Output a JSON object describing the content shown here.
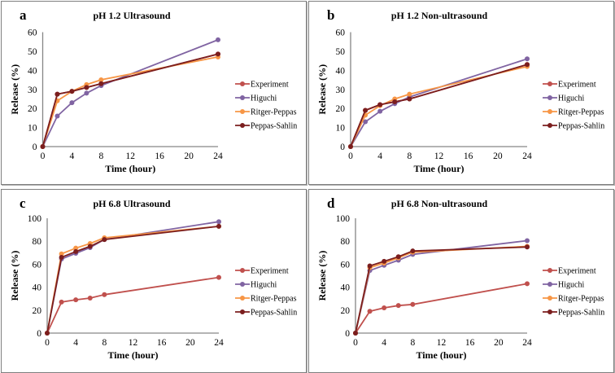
{
  "figure": {
    "panels": [
      "a",
      "b",
      "c",
      "d"
    ]
  },
  "chart_data": [
    {
      "id": "a",
      "type": "line",
      "letter": "a",
      "title": "pH 1.2 Ultrasound",
      "xlabel": "Time (hour)",
      "ylabel": "Release (%)",
      "x": [
        0,
        2,
        4,
        6,
        8,
        24
      ],
      "xlim": [
        0,
        24
      ],
      "xticks": [
        0,
        4,
        8,
        12,
        16,
        20,
        24
      ],
      "ylim": [
        0,
        60
      ],
      "yticks": [
        0,
        10,
        20,
        30,
        40,
        50,
        60
      ],
      "grid": false,
      "legend_position": "right",
      "series": [
        {
          "name": "Experiment",
          "color": "#C0504D",
          "values": [
            0,
            27.5,
            29,
            31,
            33,
            48.5
          ]
        },
        {
          "name": "Higuchi",
          "color": "#8064A2",
          "values": [
            0,
            16,
            23,
            28,
            32,
            56
          ]
        },
        {
          "name": "Ritger-Peppas",
          "color": "#F79646",
          "values": [
            0,
            24,
            29,
            32.5,
            35,
            47
          ]
        },
        {
          "name": "Peppas-Sahlin",
          "color": "#7B1E1E",
          "values": [
            0,
            27.5,
            29,
            31,
            33,
            48.5
          ]
        }
      ]
    },
    {
      "id": "b",
      "type": "line",
      "letter": "b",
      "title": "pH 1.2 Non-ultrasound",
      "xlabel": "Time (hour)",
      "ylabel": "Release (%)",
      "x": [
        0,
        2,
        4,
        6,
        8,
        24
      ],
      "xlim": [
        0,
        24
      ],
      "xticks": [
        0,
        4,
        8,
        12,
        16,
        20,
        24
      ],
      "ylim": [
        0,
        60
      ],
      "yticks": [
        0,
        10,
        20,
        30,
        40,
        50,
        60
      ],
      "grid": false,
      "legend_position": "right",
      "series": [
        {
          "name": "Experiment",
          "color": "#C0504D",
          "values": [
            0,
            19,
            22,
            23.5,
            25,
            43
          ]
        },
        {
          "name": "Higuchi",
          "color": "#8064A2",
          "values": [
            0,
            13,
            18.5,
            22.5,
            26,
            46
          ]
        },
        {
          "name": "Ritger-Peppas",
          "color": "#F79646",
          "values": [
            0,
            16.5,
            21.5,
            25,
            27.5,
            42
          ]
        },
        {
          "name": "Peppas-Sahlin",
          "color": "#7B1E1E",
          "values": [
            0,
            19,
            22,
            23.5,
            25,
            43
          ]
        }
      ]
    },
    {
      "id": "c",
      "type": "line",
      "letter": "c",
      "title": "pH 6.8 Ultrasound",
      "xlabel": "Time (hour)",
      "ylabel": "Release (%)",
      "x": [
        0,
        2,
        4,
        6,
        8,
        24
      ],
      "xlim": [
        0,
        24
      ],
      "xticks": [
        0,
        4,
        8,
        12,
        16,
        20,
        24
      ],
      "ylim": [
        0,
        100
      ],
      "yticks": [
        0,
        20,
        40,
        60,
        80,
        100
      ],
      "grid": false,
      "legend_position": "right",
      "series": [
        {
          "name": "Experiment",
          "color": "#C0504D",
          "values": [
            0,
            27,
            29,
            30.5,
            33.5,
            48.5
          ]
        },
        {
          "name": "Higuchi",
          "color": "#8064A2",
          "values": [
            0,
            64.5,
            69.5,
            74.5,
            81.5,
            97
          ]
        },
        {
          "name": "Ritger-Peppas",
          "color": "#F79646",
          "values": [
            0,
            69,
            74,
            78,
            83,
            93
          ]
        },
        {
          "name": "Peppas-Sahlin",
          "color": "#7B1E1E",
          "values": [
            0,
            66,
            71,
            75.5,
            81.5,
            93
          ]
        }
      ]
    },
    {
      "id": "d",
      "type": "line",
      "letter": "d",
      "title": "pH 6.8 Non-ultrasound",
      "xlabel": "Time (hour)",
      "ylabel": "Release (%)",
      "x": [
        0,
        2,
        4,
        6,
        8,
        24
      ],
      "xlim": [
        0,
        24
      ],
      "xticks": [
        0,
        4,
        8,
        12,
        16,
        20,
        24
      ],
      "ylim": [
        0,
        100
      ],
      "yticks": [
        0,
        20,
        40,
        60,
        80,
        100
      ],
      "grid": false,
      "legend_position": "right",
      "series": [
        {
          "name": "Experiment",
          "color": "#C0504D",
          "values": [
            0,
            19,
            22,
            24,
            25,
            43
          ]
        },
        {
          "name": "Higuchi",
          "color": "#8064A2",
          "values": [
            0,
            54.5,
            59,
            63.5,
            68.5,
            80.5
          ]
        },
        {
          "name": "Ritger-Peppas",
          "color": "#F79646",
          "values": [
            0,
            57,
            61,
            65.5,
            70.5,
            75.5
          ]
        },
        {
          "name": "Peppas-Sahlin",
          "color": "#7B1E1E",
          "values": [
            0,
            58.5,
            62.5,
            66.5,
            71.5,
            75
          ]
        }
      ]
    }
  ]
}
